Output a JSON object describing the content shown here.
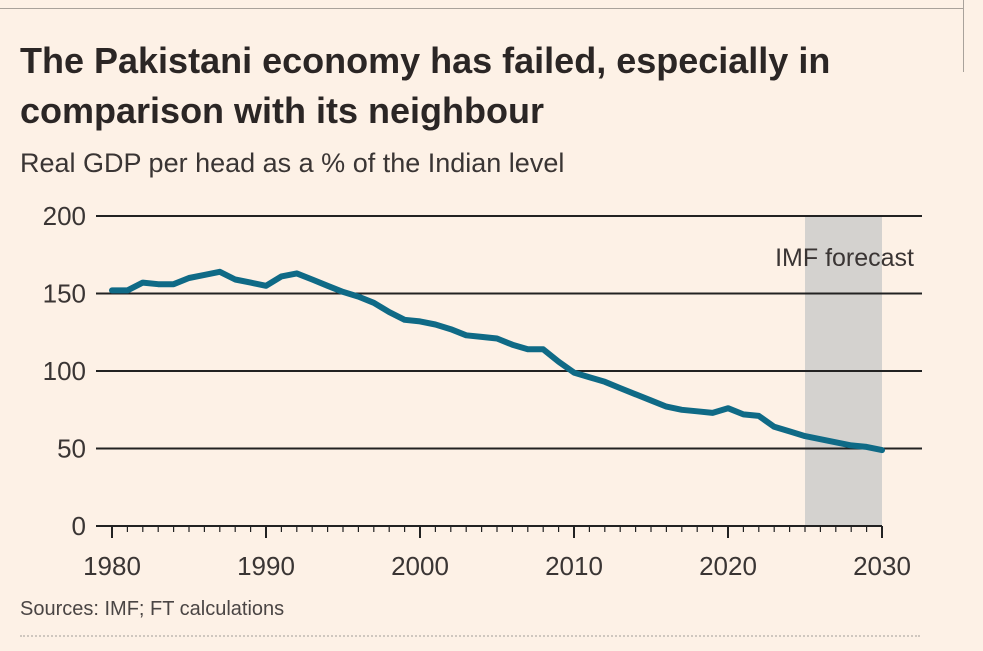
{
  "header": {
    "title": "The Pakistani economy has failed, especially in comparison with its neighbour",
    "subtitle": "Real GDP per head as a % of the Indian level"
  },
  "footer": {
    "source": "Sources: IMF; FT calculations"
  },
  "colors": {
    "background": "#fdf1e6",
    "line": "#0f6a86",
    "forecast_band": "#d4d2cf",
    "gridline": "#222222"
  },
  "chart_data": {
    "type": "line",
    "title": "The Pakistani economy has failed, especially in comparison with its neighbour",
    "subtitle": "Real GDP per head as a % of the Indian level",
    "xlabel": "",
    "ylabel": "",
    "xlim": [
      1980,
      2030
    ],
    "ylim": [
      0,
      200
    ],
    "y_ticks": [
      0,
      50,
      100,
      150,
      200
    ],
    "x_ticks": [
      1980,
      1990,
      2000,
      2010,
      2020,
      2030
    ],
    "grid": "horizontal",
    "annotation": {
      "label": "IMF forecast",
      "x_start": 2025,
      "x_end": 2030
    },
    "series": [
      {
        "x": [
          1980,
          1981,
          1982,
          1983,
          1984,
          1985,
          1986,
          1987,
          1988,
          1989,
          1990,
          1991,
          1992,
          1993,
          1994,
          1995,
          1996,
          1997,
          1998,
          1999,
          2000,
          2001,
          2002,
          2003,
          2004,
          2005,
          2006,
          2007,
          2008,
          2009,
          2010,
          2011,
          2012,
          2013,
          2014,
          2015,
          2016,
          2017,
          2018,
          2019,
          2020,
          2021,
          2022,
          2023,
          2024,
          2025,
          2026,
          2027,
          2028,
          2029,
          2030
        ],
        "values": [
          152,
          152,
          157,
          156,
          156,
          160,
          162,
          164,
          159,
          157,
          155,
          161,
          163,
          159,
          155,
          151,
          148,
          144,
          138,
          133,
          132,
          130,
          127,
          123,
          122,
          121,
          117,
          114,
          114,
          106,
          99,
          96,
          93,
          89,
          85,
          81,
          77,
          75,
          74,
          73,
          76,
          72,
          71,
          64,
          61,
          58,
          56,
          54,
          52,
          51,
          49
        ]
      }
    ]
  }
}
